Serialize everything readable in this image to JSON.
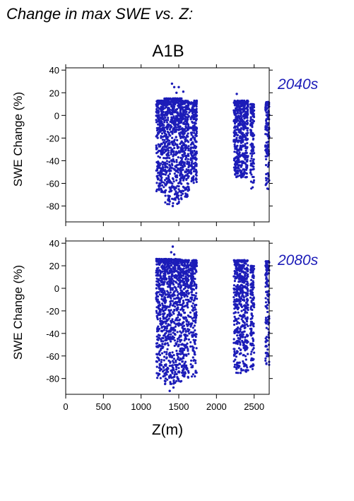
{
  "figure": {
    "title": "Change in max SWE vs. Z:",
    "scenario": "A1B",
    "accent_color": "#1c1cb8"
  },
  "chart_data": [
    {
      "type": "scatter",
      "period": "2040s",
      "ylabel": "SWE Change (%)",
      "xlim": [
        0,
        2700
      ],
      "ylim": [
        -94,
        42
      ],
      "yticks": [
        40,
        20,
        0,
        -20,
        -40,
        -60,
        -80
      ],
      "xticks": [
        0,
        500,
        1000,
        1500,
        2000,
        2500
      ],
      "color": "#1c1cb8",
      "clusters": [
        {
          "x": [
            1200,
            1310
          ],
          "y": [
            -68,
            13
          ]
        },
        {
          "x": [
            1310,
            1540
          ],
          "y": [
            -79,
            15
          ]
        },
        {
          "x": [
            1540,
            1640
          ],
          "y": [
            -72,
            13
          ]
        },
        {
          "x": [
            1655,
            1740
          ],
          "y": [
            -60,
            13
          ]
        },
        {
          "x": [
            2230,
            2420
          ],
          "y": [
            -55,
            13
          ]
        },
        {
          "x": [
            2450,
            2500
          ],
          "y": [
            -65,
            10
          ]
        },
        {
          "x": [
            2650,
            2700
          ],
          "y": [
            -65,
            12
          ]
        }
      ],
      "points": [
        {
          "x": 1410,
          "y": 28
        },
        {
          "x": 1440,
          "y": 25
        },
        {
          "x": 1500,
          "y": 25
        },
        {
          "x": 1470,
          "y": 20
        },
        {
          "x": 1560,
          "y": 21
        },
        {
          "x": 2270,
          "y": 19
        },
        {
          "x": 1420,
          "y": -80
        },
        {
          "x": 1380,
          "y": -76
        },
        {
          "x": 1480,
          "y": -78
        }
      ]
    },
    {
      "type": "scatter",
      "period": "2080s",
      "ylabel": "SWE Change (%)",
      "xlabel": "Z(m)",
      "xlim": [
        0,
        2700
      ],
      "ylim": [
        -94,
        42
      ],
      "yticks": [
        40,
        20,
        0,
        -20,
        -40,
        -60,
        -80
      ],
      "xticks": [
        0,
        500,
        1000,
        1500,
        2000,
        2500
      ],
      "color": "#1c1cb8",
      "clusters": [
        {
          "x": [
            1200,
            1310
          ],
          "y": [
            -80,
            26
          ]
        },
        {
          "x": [
            1310,
            1540
          ],
          "y": [
            -85,
            26
          ]
        },
        {
          "x": [
            1540,
            1640
          ],
          "y": [
            -80,
            25
          ]
        },
        {
          "x": [
            1655,
            1740
          ],
          "y": [
            -80,
            25
          ]
        },
        {
          "x": [
            2230,
            2420
          ],
          "y": [
            -75,
            25
          ]
        },
        {
          "x": [
            2450,
            2500
          ],
          "y": [
            -72,
            20
          ]
        },
        {
          "x": [
            2650,
            2700
          ],
          "y": [
            -68,
            24
          ]
        }
      ],
      "points": [
        {
          "x": 1420,
          "y": 37
        },
        {
          "x": 1400,
          "y": 32
        },
        {
          "x": 1440,
          "y": 30
        },
        {
          "x": 1380,
          "y": -91
        },
        {
          "x": 1430,
          "y": -88
        },
        {
          "x": 2320,
          "y": -75
        }
      ]
    }
  ]
}
